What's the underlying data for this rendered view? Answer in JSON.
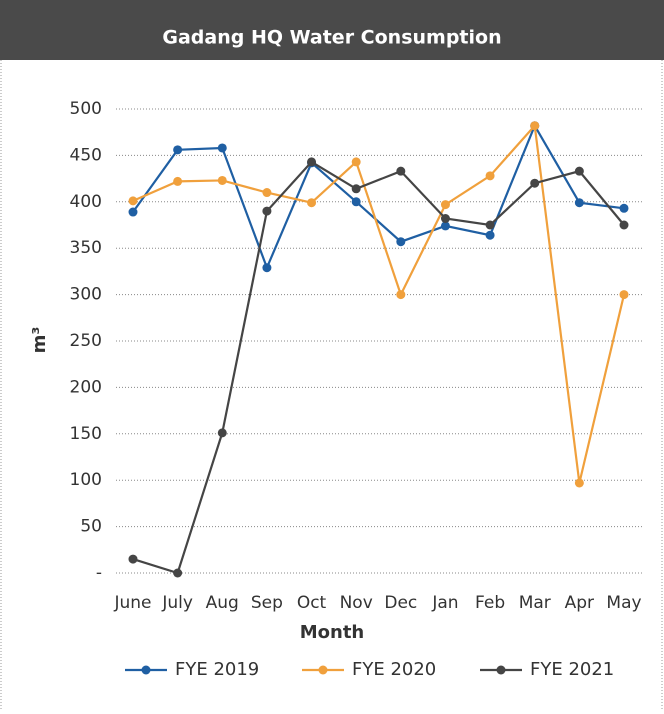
{
  "chart_data": {
    "type": "line",
    "title": "Gadang HQ Water Consumption",
    "xlabel": "Month",
    "ylabel": "m³",
    "categories": [
      "June",
      "July",
      "Aug",
      "Sep",
      "Oct",
      "Nov",
      "Dec",
      "Jan",
      "Feb",
      "Mar",
      "Apr",
      "May"
    ],
    "series": [
      {
        "name": "FYE 2019",
        "color": "#1f5fa3",
        "values": [
          389,
          456,
          458,
          329,
          442,
          400,
          357,
          374,
          364,
          482,
          399,
          393
        ]
      },
      {
        "name": "FYE 2020",
        "color": "#f0a03c",
        "values": [
          401,
          422,
          423,
          410,
          399,
          443,
          300,
          397,
          428,
          482,
          97,
          300
        ]
      },
      {
        "name": "FYE 2021",
        "color": "#454545",
        "values": [
          15,
          0,
          151,
          390,
          443,
          414,
          433,
          382,
          375,
          420,
          433,
          375
        ]
      }
    ],
    "ylim": [
      0,
      500
    ],
    "yticks": [
      {
        "value": 0,
        "label": "-"
      },
      50,
      100,
      150,
      200,
      250,
      300,
      350,
      400,
      450,
      500
    ],
    "grid": true,
    "legend": "bottom"
  }
}
